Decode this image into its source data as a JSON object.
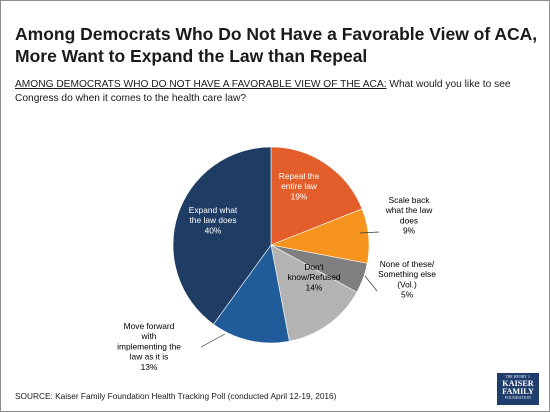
{
  "title_line1": "Among Democrats Who Do Not Have a Favorable View of ACA,",
  "title_line2": "More Want to Expand the Law than Repeal",
  "question": {
    "label": "AMONG DEMOCRATS WHO DO NOT HAVE A FAVORABLE VIEW OF THE ACA:",
    "text": " What would you like to see Congress do when it comes to the health care law?"
  },
  "source": "SOURCE: Kaiser Family Foundation Health Tracking Poll (conducted April 12-19, 2016)",
  "logo": {
    "line1": "THE HENRY J.",
    "line2": "KAISER",
    "line3": "FAMILY",
    "line4": "FOUNDATION"
  },
  "chart_data": {
    "type": "pie",
    "start": "12 o'clock",
    "direction": "clockwise",
    "slices": [
      {
        "label_lines": [
          "Repeal the",
          "entire law"
        ],
        "value": 19,
        "value_label": "19%",
        "color": "#e35e2a",
        "label_color": "#ffffff",
        "label_position": "inside"
      },
      {
        "label_lines": [
          "Scale back",
          "what the law",
          "does"
        ],
        "value": 9,
        "value_label": "9%",
        "color": "#f7941d",
        "label_color": "#000000",
        "label_position": "outside"
      },
      {
        "label_lines": [
          "None of these/",
          "Something else",
          "(Vol.)"
        ],
        "value": 5,
        "value_label": "5%",
        "color": "#7f7f7f",
        "label_color": "#000000",
        "label_position": "outside"
      },
      {
        "label_lines": [
          "Don't",
          "know/Refused"
        ],
        "value": 14,
        "value_label": "14%",
        "color": "#b3b3b3",
        "label_color": "#000000",
        "label_position": "inside"
      },
      {
        "label_lines": [
          "Move forward",
          "with",
          "implementing the",
          "law as it is"
        ],
        "value": 13,
        "value_label": "13%",
        "color": "#1f5c99",
        "label_color": "#000000",
        "label_position": "outside"
      },
      {
        "label_lines": [
          "Expand what",
          "the law does"
        ],
        "value": 40,
        "value_label": "40%",
        "color": "#1f3c64",
        "label_color": "#ffffff",
        "label_position": "inside"
      }
    ]
  }
}
